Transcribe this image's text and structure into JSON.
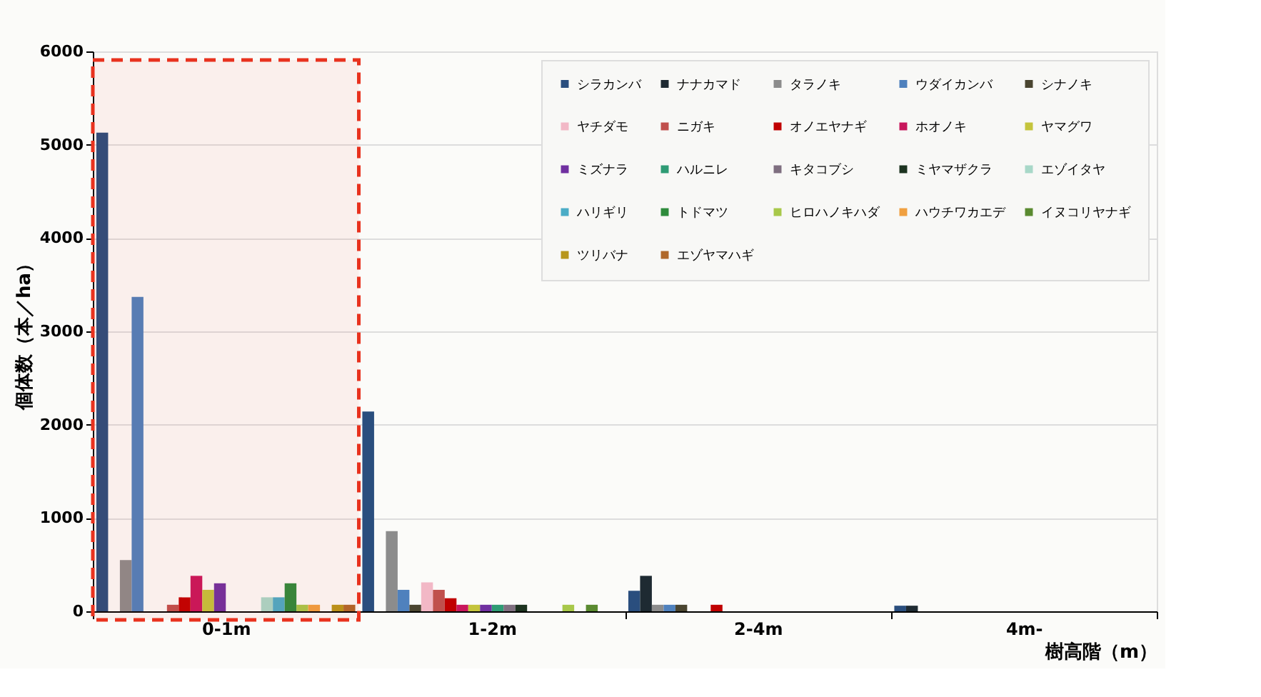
{
  "chart_data": {
    "type": "bar",
    "xlabel": "樹高階（m）",
    "ylabel": "個体数（本／ha）",
    "categories": [
      "0-1m",
      "1-2m",
      "2-4m",
      "4m-"
    ],
    "ylim": [
      0,
      6000
    ],
    "yticks": [
      0,
      1000,
      2000,
      3000,
      4000,
      5000,
      6000
    ],
    "grid": "y",
    "legend": "top right",
    "bands": [
      {
        "axis": "x",
        "from": "0-1m",
        "to": "0-1m",
        "color": "#e8321e"
      }
    ],
    "series": [
      {
        "name": "シラカンバ",
        "color": "#2a4e7e",
        "values": [
          5130,
          2140,
          220,
          60
        ]
      },
      {
        "name": "ナナカマド",
        "color": "#1e2a32",
        "values": [
          0,
          0,
          380,
          60
        ]
      },
      {
        "name": "タラノキ",
        "color": "#8c8c8c",
        "values": [
          550,
          860,
          70,
          0
        ]
      },
      {
        "name": "ウダイカンバ",
        "color": "#4f81bd",
        "values": [
          3370,
          230,
          70,
          0
        ]
      },
      {
        "name": "シナノキ",
        "color": "#4a4530",
        "values": [
          0,
          70,
          70,
          0
        ]
      },
      {
        "name": "ヤチダモ",
        "color": "#f2b8c6",
        "values": [
          0,
          310,
          0,
          0
        ]
      },
      {
        "name": "ニガキ",
        "color": "#c0504d",
        "values": [
          70,
          230,
          0,
          0
        ]
      },
      {
        "name": "オノエヤナギ",
        "color": "#c00000",
        "values": [
          150,
          140,
          70,
          0
        ]
      },
      {
        "name": "ホオノキ",
        "color": "#c8175c",
        "values": [
          380,
          70,
          0,
          0
        ]
      },
      {
        "name": "ヤマグワ",
        "color": "#c4c43c",
        "values": [
          230,
          70,
          0,
          0
        ]
      },
      {
        "name": "ミズナラ",
        "color": "#7030a0",
        "values": [
          300,
          70,
          0,
          0
        ]
      },
      {
        "name": "ハルニレ",
        "color": "#2e9b74",
        "values": [
          0,
          70,
          0,
          0
        ]
      },
      {
        "name": "キタコブシ",
        "color": "#7f6f80",
        "values": [
          0,
          70,
          0,
          0
        ]
      },
      {
        "name": "ミヤマザクラ",
        "color": "#1d3320",
        "values": [
          0,
          70,
          0,
          0
        ]
      },
      {
        "name": "エゾイタヤ",
        "color": "#a8d8c8",
        "values": [
          150,
          0,
          0,
          0
        ]
      },
      {
        "name": "ハリギリ",
        "color": "#4bacc6",
        "values": [
          150,
          0,
          0,
          0
        ]
      },
      {
        "name": "トドマツ",
        "color": "#2e8b3c",
        "values": [
          300,
          0,
          0,
          0
        ]
      },
      {
        "name": "ヒロハノキハダ",
        "color": "#a8c84a",
        "values": [
          70,
          70,
          0,
          0
        ]
      },
      {
        "name": "ハウチワカエデ",
        "color": "#f0a040",
        "values": [
          70,
          0,
          0,
          0
        ]
      },
      {
        "name": "イヌコリヤナギ",
        "color": "#5a8a30",
        "values": [
          0,
          70,
          0,
          0
        ]
      },
      {
        "name": "ツリバナ",
        "color": "#b8961a",
        "values": [
          70,
          0,
          0,
          0
        ]
      },
      {
        "name": "エゾヤマハギ",
        "color": "#b0682a",
        "values": [
          70,
          0,
          0,
          0
        ]
      }
    ]
  }
}
